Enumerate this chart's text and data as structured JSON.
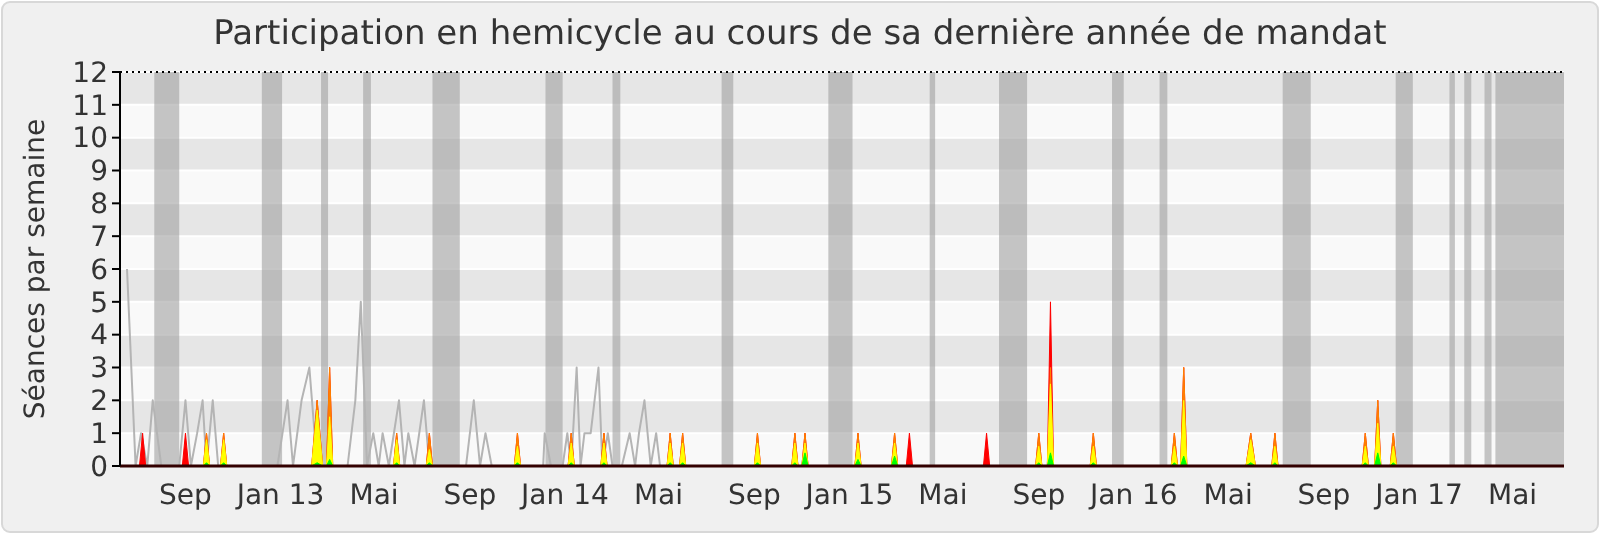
{
  "chart_data": {
    "type": "area",
    "title": "Participation en hemicycle au cours de sa dernière année de mandat",
    "ylabel": "Séances par semaine",
    "xlim": [
      "2012-06-09",
      "2017-07-06"
    ],
    "xticks": [
      {
        "value": "2012-09-01",
        "label": "Sep"
      },
      {
        "value": "2013-01-01",
        "label": "Jan 13"
      },
      {
        "value": "2013-05-01",
        "label": "Mai"
      },
      {
        "value": "2013-09-01",
        "label": "Sep"
      },
      {
        "value": "2014-01-01",
        "label": "Jan 14"
      },
      {
        "value": "2014-05-01",
        "label": "Mai"
      },
      {
        "value": "2014-09-01",
        "label": "Sep"
      },
      {
        "value": "2015-01-01",
        "label": "Jan 15"
      },
      {
        "value": "2015-05-01",
        "label": "Mai"
      },
      {
        "value": "2015-09-01",
        "label": "Sep"
      },
      {
        "value": "2016-01-01",
        "label": "Jan 16"
      },
      {
        "value": "2016-05-01",
        "label": "Mai"
      },
      {
        "value": "2016-09-01",
        "label": "Sep"
      },
      {
        "value": "2017-01-01",
        "label": "Jan 17"
      },
      {
        "value": "2017-05-01",
        "label": "Mai"
      }
    ],
    "ylim": [
      0,
      12
    ],
    "yticks": [
      0,
      1,
      2,
      3,
      4,
      5,
      6,
      7,
      8,
      9,
      10,
      11,
      12
    ],
    "grid": true,
    "bands": [
      {
        "axis": "x",
        "from": "2012-07-23",
        "to": "2012-08-24",
        "color": "#a0a0a0"
      },
      {
        "axis": "x",
        "from": "2012-12-08",
        "to": "2013-01-03",
        "color": "#a0a0a0"
      },
      {
        "axis": "x",
        "from": "2013-02-22",
        "to": "2013-03-03",
        "color": "#a0a0a0"
      },
      {
        "axis": "x",
        "from": "2013-04-17",
        "to": "2013-04-27",
        "color": "#a0a0a0"
      },
      {
        "axis": "x",
        "from": "2013-07-15",
        "to": "2013-08-19",
        "color": "#a0a0a0"
      },
      {
        "axis": "x",
        "from": "2013-12-07",
        "to": "2013-12-29",
        "color": "#a0a0a0"
      },
      {
        "axis": "x",
        "from": "2014-03-03",
        "to": "2014-03-13",
        "color": "#a0a0a0"
      },
      {
        "axis": "x",
        "from": "2014-07-21",
        "to": "2014-08-05",
        "color": "#a0a0a0"
      },
      {
        "axis": "x",
        "from": "2014-12-05",
        "to": "2015-01-05",
        "color": "#a0a0a0"
      },
      {
        "axis": "x",
        "from": "2015-04-14",
        "to": "2015-04-21",
        "color": "#a0a0a0"
      },
      {
        "axis": "x",
        "from": "2015-07-12",
        "to": "2015-08-17",
        "color": "#a0a0a0"
      },
      {
        "axis": "x",
        "from": "2015-12-04",
        "to": "2015-12-19",
        "color": "#a0a0a0"
      },
      {
        "axis": "x",
        "from": "2016-02-03",
        "to": "2016-02-13",
        "color": "#a0a0a0"
      },
      {
        "axis": "x",
        "from": "2016-07-10",
        "to": "2016-08-15",
        "color": "#a0a0a0"
      },
      {
        "axis": "x",
        "from": "2016-12-02",
        "to": "2016-12-24",
        "color": "#a0a0a0"
      },
      {
        "axis": "x",
        "from": "2017-02-09",
        "to": "2017-02-16",
        "color": "#a0a0a0"
      },
      {
        "axis": "x",
        "from": "2017-02-28",
        "to": "2017-03-09",
        "color": "#a0a0a0"
      },
      {
        "axis": "x",
        "from": "2017-03-26",
        "to": "2017-04-04",
        "color": "#a0a0a0"
      },
      {
        "axis": "x",
        "from": "2017-04-09",
        "to": "2017-07-06",
        "color": "#a0a0a0"
      }
    ],
    "x": [
      "2012-07-04",
      "2012-07-08",
      "2012-07-12",
      "2012-08-28",
      "2012-09-01",
      "2012-09-05",
      "2012-09-24",
      "2012-09-28",
      "2012-10-02",
      "2012-10-16",
      "2012-10-20",
      "2012-10-24",
      "2013-02-10",
      "2013-02-17",
      "2013-02-24",
      "2013-03-01",
      "2013-03-05",
      "2013-03-09",
      "2013-05-26",
      "2013-05-30",
      "2013-06-03",
      "2013-07-07",
      "2013-07-11",
      "2013-07-15",
      "2013-10-28",
      "2013-11-01",
      "2013-11-05",
      "2014-01-05",
      "2014-01-09",
      "2014-01-13",
      "2014-02-16",
      "2014-02-20",
      "2014-02-24",
      "2014-05-12",
      "2014-05-16",
      "2014-05-20",
      "2014-05-28",
      "2014-06-01",
      "2014-06-05",
      "2014-09-01",
      "2014-09-05",
      "2014-09-09",
      "2014-10-19",
      "2014-10-23",
      "2014-10-27",
      "2014-11-01",
      "2014-11-05",
      "2014-11-09",
      "2015-01-08",
      "2015-01-12",
      "2015-01-16",
      "2015-02-24",
      "2015-02-28",
      "2015-03-04",
      "2015-03-15",
      "2015-03-19",
      "2015-03-23",
      "2015-06-22",
      "2015-06-26",
      "2015-06-30",
      "2015-08-28",
      "2015-09-01",
      "2015-09-05",
      "2015-09-12",
      "2015-09-16",
      "2015-09-20",
      "2015-11-06",
      "2015-11-10",
      "2015-11-14",
      "2016-02-18",
      "2016-02-22",
      "2016-02-26",
      "2016-03-01",
      "2016-03-05",
      "2016-03-09",
      "2016-05-24",
      "2016-05-30",
      "2016-06-05",
      "2016-06-26",
      "2016-06-30",
      "2016-07-04",
      "2016-10-20",
      "2016-10-24",
      "2016-10-28",
      "2016-11-05",
      "2016-11-09",
      "2016-11-13",
      "2016-11-25",
      "2016-11-29",
      "2016-12-03"
    ],
    "series": [
      {
        "type": "line",
        "color": "#b4b4b4",
        "x": [
          "2012-06-18",
          "2012-06-29",
          "2012-07-06",
          "2012-07-14",
          "2012-07-21",
          "2012-08-01",
          "2012-08-24",
          "2012-09-01",
          "2012-09-08",
          "2012-09-16",
          "2012-09-23",
          "2012-09-28",
          "2012-10-06",
          "2012-10-13",
          "2012-12-28",
          "2013-01-10",
          "2013-01-17",
          "2013-01-28",
          "2013-02-07",
          "2013-02-17",
          "2013-03-28",
          "2013-04-07",
          "2013-04-14",
          "2013-04-22",
          "2013-04-30",
          "2013-05-07",
          "2013-05-12",
          "2013-05-20",
          "2013-06-02",
          "2013-06-09",
          "2013-06-14",
          "2013-06-22",
          "2013-07-04",
          "2013-07-11",
          "2013-08-27",
          "2013-09-06",
          "2013-09-14",
          "2013-09-21",
          "2013-09-29",
          "2013-12-04",
          "2013-12-06",
          "2013-12-14",
          "2013-12-29",
          "2014-01-04",
          "2014-01-09",
          "2014-01-16",
          "2014-01-21",
          "2014-01-26",
          "2014-02-03",
          "2014-02-13",
          "2014-02-18",
          "2014-02-25",
          "2014-03-03",
          "2014-03-15",
          "2014-03-25",
          "2014-04-01",
          "2014-04-06",
          "2014-04-13",
          "2014-04-21",
          "2014-04-28",
          "2014-05-03"
        ],
        "values": [
          6,
          0,
          1,
          0,
          2,
          0,
          0,
          2,
          0,
          1,
          2,
          0,
          2,
          0,
          0,
          2,
          0,
          2,
          3,
          0,
          0,
          2,
          5,
          0,
          1,
          0,
          1,
          0,
          2,
          0,
          1,
          0,
          2,
          0,
          0,
          2,
          0,
          1,
          0,
          0,
          1,
          0,
          0,
          1,
          0,
          3,
          0,
          1,
          1,
          3,
          0,
          1,
          0,
          0,
          1,
          0,
          1,
          2,
          0,
          1,
          0
        ]
      },
      {
        "color": "#ff0000",
        "values": [
          0,
          1,
          0,
          0,
          1,
          0,
          0,
          1,
          0,
          0,
          1,
          0,
          0,
          2,
          0,
          0,
          3,
          0,
          0,
          1,
          0,
          0,
          1,
          0,
          0,
          1,
          0,
          0,
          1,
          0,
          0,
          1,
          0,
          0,
          1,
          0,
          0,
          1,
          0,
          0,
          1,
          0,
          0,
          1,
          0,
          0,
          1,
          0,
          0,
          1,
          0,
          0,
          1,
          0,
          0,
          1,
          0,
          0,
          1,
          0,
          0,
          1,
          0,
          0,
          5,
          0,
          0,
          1,
          0,
          0,
          1,
          0,
          0,
          3,
          0,
          0,
          1,
          0,
          0,
          1,
          0,
          0,
          1,
          0,
          0,
          2,
          0,
          0,
          1,
          0
        ]
      },
      {
        "color": "#ff8000",
        "values": [
          0,
          0,
          0,
          0,
          0,
          0,
          0,
          1,
          0,
          0,
          1,
          0,
          0,
          2,
          0,
          0,
          3,
          0,
          0,
          1,
          0,
          0,
          1,
          0,
          0,
          1,
          0,
          0,
          1,
          0,
          0,
          1,
          0,
          0,
          1,
          0,
          0,
          1,
          0,
          0,
          1,
          0,
          0,
          1,
          0,
          0,
          1,
          0,
          0,
          1,
          0,
          0,
          1,
          0,
          0,
          0,
          0,
          0,
          0,
          0,
          0,
          1,
          0,
          0,
          3,
          0,
          0,
          1,
          0,
          0,
          1,
          0,
          0,
          3,
          0,
          0,
          1,
          0,
          0,
          1,
          0,
          0,
          1,
          0,
          0,
          2,
          0,
          0,
          1,
          0
        ]
      },
      {
        "color": "#ffff00",
        "values": [
          0,
          0,
          0,
          0,
          0,
          0,
          0,
          0.8,
          0,
          0,
          0.8,
          0,
          0,
          1.7,
          0,
          0,
          1.5,
          0,
          0,
          0.8,
          0,
          0,
          0.5,
          0,
          0,
          0.6,
          0,
          0,
          0.7,
          0,
          0,
          0.7,
          0,
          0,
          0.7,
          0,
          0,
          0.7,
          0,
          0,
          0.7,
          0,
          0,
          0.7,
          0,
          0,
          0.7,
          0,
          0,
          0.7,
          0,
          0,
          0.7,
          0,
          0,
          0,
          0,
          0,
          0,
          0,
          0,
          0.6,
          0,
          0,
          2.5,
          0,
          0,
          0.6,
          0,
          0,
          0.6,
          0,
          0,
          2,
          0,
          0,
          0.8,
          0,
          0,
          0.6,
          0,
          0,
          0.6,
          0,
          0,
          1.3,
          0,
          0,
          0.6,
          0
        ]
      },
      {
        "color": "#00ff00",
        "values": [
          0,
          0,
          0,
          0,
          0,
          0,
          0,
          0.1,
          0,
          0,
          0.1,
          0,
          0,
          0.1,
          0,
          0,
          0.2,
          0,
          0,
          0.1,
          0,
          0,
          0.1,
          0,
          0,
          0.1,
          0,
          0,
          0.1,
          0,
          0,
          0.1,
          0,
          0,
          0.1,
          0,
          0,
          0.1,
          0,
          0,
          0.1,
          0,
          0,
          0.1,
          0,
          0,
          0.4,
          0,
          0,
          0.2,
          0,
          0,
          0.3,
          0,
          0,
          0,
          0,
          0,
          0,
          0,
          0,
          0.1,
          0,
          0,
          0.4,
          0,
          0,
          0.1,
          0,
          0,
          0.1,
          0,
          0,
          0.3,
          0,
          0,
          0.1,
          0,
          0,
          0.1,
          0,
          0,
          0.1,
          0,
          0,
          0.4,
          0,
          0,
          0.1,
          0
        ]
      }
    ]
  }
}
